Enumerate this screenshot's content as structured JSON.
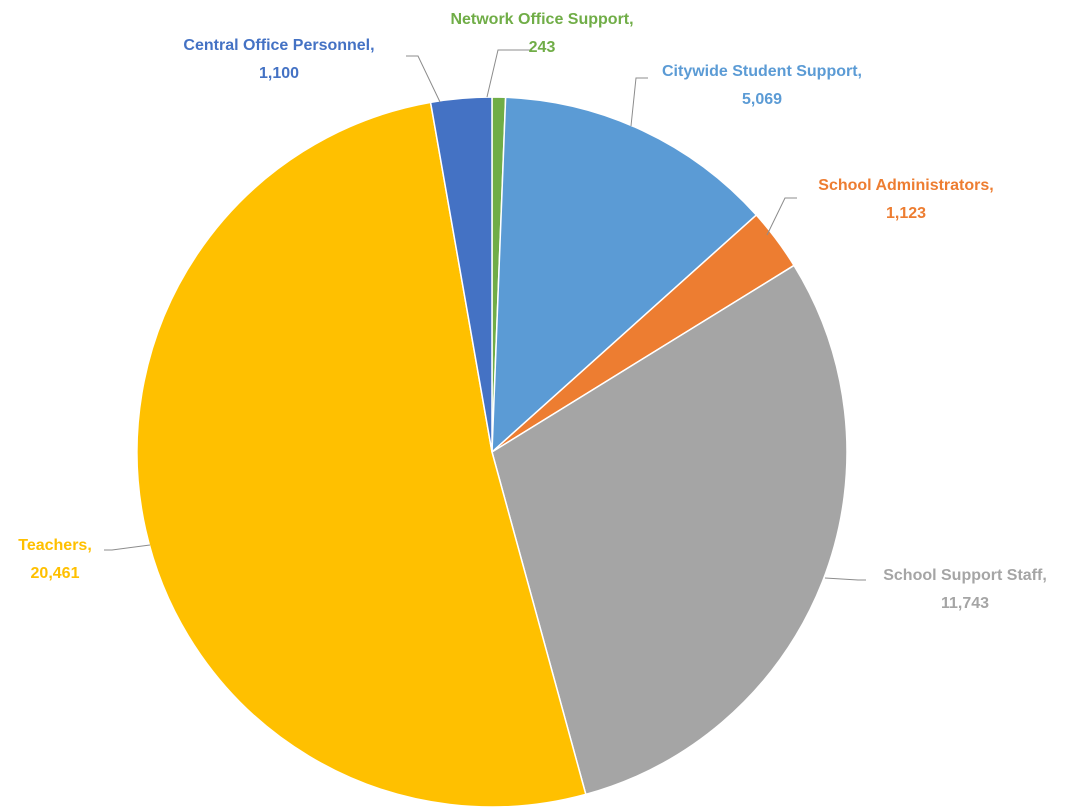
{
  "chart_data": {
    "type": "pie",
    "title": "",
    "start_angle_deg": 0,
    "direction": "clockwise",
    "slices": [
      {
        "label": "Network Office Support",
        "value": 243,
        "value_text": "243",
        "color": "#70ad47",
        "label_anchor": "middle"
      },
      {
        "label": "Citywide Student Support",
        "value": 5069,
        "value_text": "5,069",
        "color": "#5b9bd5",
        "label_anchor": "middle"
      },
      {
        "label": "School Administrators",
        "value": 1123,
        "value_text": "1,123",
        "color": "#ed7d31",
        "label_anchor": "middle"
      },
      {
        "label": "School Support Staff",
        "value": 11743,
        "value_text": "11,743",
        "color": "#a5a5a5",
        "label_anchor": "middle"
      },
      {
        "label": "Teachers",
        "value": 20461,
        "value_text": "20,461",
        "color": "#ffc000",
        "label_anchor": "middle"
      },
      {
        "label": "Central Office Personnel",
        "value": 1100,
        "value_text": "1,100",
        "color": "#4472c4",
        "label_anchor": "middle"
      }
    ]
  }
}
